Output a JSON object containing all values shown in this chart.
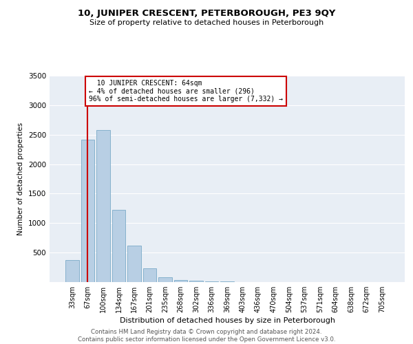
{
  "title": "10, JUNIPER CRESCENT, PETERBOROUGH, PE3 9QY",
  "subtitle": "Size of property relative to detached houses in Peterborough",
  "xlabel": "Distribution of detached houses by size in Peterborough",
  "ylabel": "Number of detached properties",
  "footer_line1": "Contains HM Land Registry data © Crown copyright and database right 2024.",
  "footer_line2": "Contains public sector information licensed under the Open Government Licence v3.0.",
  "annotation_line1": "  10 JUNIPER CRESCENT: 64sqm",
  "annotation_line2": "← 4% of detached houses are smaller (296)",
  "annotation_line3": "96% of semi-detached houses are larger (7,332) →",
  "bar_color": "#b8cfe4",
  "bar_edge_color": "#7aaac8",
  "vline_color": "#cc0000",
  "background_color": "#e8eef5",
  "categories": [
    "33sqm",
    "67sqm",
    "100sqm",
    "134sqm",
    "167sqm",
    "201sqm",
    "235sqm",
    "268sqm",
    "302sqm",
    "336sqm",
    "369sqm",
    "403sqm",
    "436sqm",
    "470sqm",
    "504sqm",
    "537sqm",
    "571sqm",
    "604sqm",
    "638sqm",
    "672sqm",
    "705sqm"
  ],
  "values": [
    370,
    2420,
    2580,
    1230,
    620,
    235,
    80,
    38,
    18,
    10,
    6,
    4,
    3,
    2,
    1,
    1,
    1,
    0,
    0,
    0,
    0
  ],
  "ylim": [
    0,
    3500
  ],
  "yticks": [
    0,
    500,
    1000,
    1500,
    2000,
    2500,
    3000,
    3500
  ],
  "grid_color": "#ffffff",
  "vline_x": 0.97
}
